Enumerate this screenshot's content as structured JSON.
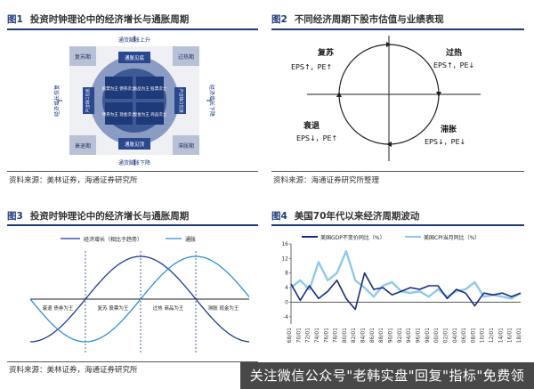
{
  "fig1": {
    "title_num": "图1",
    "title": "投资时钟理论中的经济增长与通胀周期",
    "source": "资料来源：美林证券，海通证券研究所",
    "top_label": "通货膨胀上升",
    "bottom_label": "通货膨胀下降",
    "left_label": "经济增长恢复",
    "right_label": "经济增长下降",
    "corner_tl": "复苏期",
    "corner_tr": "过热期",
    "corner_bl": "衰退期",
    "corner_br": "滞胀期",
    "center_top": "通胀见底",
    "center_bottom": "通胀见顶",
    "center_left": "产出缺口见底",
    "center_right": "产出缺口见顶",
    "q_tl": "股票为王 债券次之",
    "q_tr": "商品为王 股票次之",
    "q_bl": "债券为王 现金次之",
    "q_br": "现金为王 商品次之"
  },
  "fig2": {
    "title_num": "图2",
    "title": "不同经济周期下股市估值与业绩表现",
    "source": "资料来源：海通证券研究所整理",
    "q_tl_name": "复苏",
    "q_tl_eps": "EPS↑，PE↑",
    "q_tr_name": "过热",
    "q_tr_eps": "EPS↑，PE↓",
    "q_bl_name": "衰退",
    "q_bl_eps": "EPS↓，PE↑",
    "q_br_name": "滞胀",
    "q_br_eps": "EPS↓，PE↓"
  },
  "fig3": {
    "title_num": "图3",
    "title": "投资时钟理论中的经济增长与通胀周期",
    "source": "资料来源：美林证券，海通证券研究所",
    "legend_growth": "经济增长（相比于趋势）",
    "legend_inflation": "通胀",
    "phases": [
      "衰退 债券为王",
      "复苏 股票为王",
      "过热 商品为王",
      "滞胀 现金为王"
    ],
    "colors": {
      "growth": "#1f3b9a",
      "inflation": "#2e8fd6"
    }
  },
  "fig4": {
    "title_num": "图4",
    "title": "美国70年代以来经济周期波动",
    "legend_gdp": "美国GDP不变价同比（%）",
    "legend_cpi": "美国CPI当月同比（%）",
    "colors": {
      "gdp": "#1a2a86",
      "cpi": "#8ec9ec"
    }
  },
  "chart_data": {
    "type": "line",
    "x": [
      "68/01",
      "70/01",
      "72/01",
      "74/01",
      "76/01",
      "78/01",
      "80/01",
      "82/01",
      "84/01",
      "86/01",
      "88/01",
      "90/01",
      "92/01",
      "94/01",
      "96/01",
      "98/01",
      "00/01",
      "02/01",
      "04/01",
      "06/01",
      "08/01",
      "10/01",
      "12/01",
      "14/01",
      "16/01",
      "18/01"
    ],
    "series": [
      {
        "name": "美国GDP不变价同比（%）",
        "values": [
          5,
          0.5,
          4.5,
          1,
          3,
          6,
          1,
          -2,
          8,
          3.5,
          4,
          2,
          3,
          4,
          3.5,
          4.5,
          4.5,
          1,
          3.5,
          2.5,
          -1,
          2.5,
          2,
          2.5,
          1.5,
          2.5
        ]
      },
      {
        "name": "美国CPI当月同比（%）",
        "values": [
          4,
          6,
          3.5,
          11,
          6,
          8,
          14,
          6,
          4,
          1.5,
          4.5,
          5.5,
          3,
          2.5,
          3,
          1.5,
          3.5,
          1.5,
          3,
          3.5,
          5.5,
          1.5,
          2,
          1.5,
          1,
          2.5
        ]
      }
    ],
    "ylim": [
      -6,
      16
    ],
    "yticks": [
      "16",
      "12",
      "8",
      "4",
      "0",
      "-4"
    ],
    "xlabels": [
      "68/01",
      "70/01",
      "72/01",
      "74/01",
      "76/01",
      "78/01",
      "80/01",
      "82/01",
      "84/01",
      "86/01",
      "88/01",
      "90/01",
      "92/01",
      "94/01",
      "96/01",
      "98/01",
      "00/01",
      "02/01",
      "04/01",
      "06/01",
      "08/01",
      "10/01",
      "12/01",
      "14/01",
      "16/01",
      "18/01"
    ]
  },
  "watermark": "关注微信公众号\"老韩实盘\"回复\"指标\"免费领"
}
